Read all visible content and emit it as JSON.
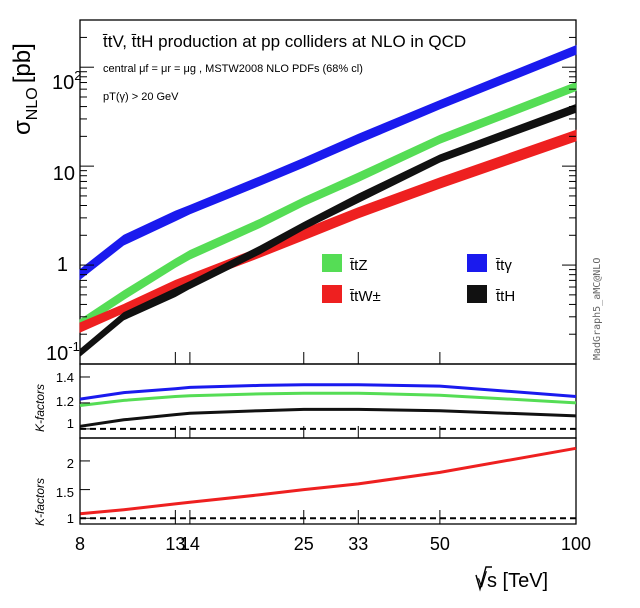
{
  "chart_data": {
    "type": "line",
    "x": [
      8,
      10,
      13,
      14,
      20,
      25,
      33,
      50,
      100
    ],
    "xlabel": "√s [TeV]",
    "xticks": [
      "8",
      "13",
      "14",
      "25",
      "33",
      "50",
      "100"
    ],
    "watermark": "MadGraph5_aMC@NLO",
    "panels": [
      {
        "name": "cross-section",
        "ylabel_main": "σ",
        "ylabel_sub": "NLO",
        "ylabel_unit": "[pb]",
        "yscale": "log",
        "ylim": [
          0.1,
          300
        ],
        "yticks": [
          {
            "value": 0.1,
            "base": "10",
            "exp": "-1"
          },
          {
            "value": 1,
            "base": "1",
            "exp": ""
          },
          {
            "value": 10,
            "base": "10",
            "exp": ""
          },
          {
            "value": 100,
            "base": "10",
            "exp": "2"
          }
        ],
        "title": "t̄tV, t̄tH production at pp colliders at NLO in QCD",
        "annotations": [
          "central μf = μr = μg , MSTW2008 NLO PDFs (68% cl)",
          "pT(γ) > 20 GeV"
        ],
        "series": [
          {
            "name": "t̄tγ",
            "color": "#1a1aee",
            "low": [
              0.72,
              1.6,
              2.8,
              3.3,
              6.4,
              9.8,
              17.0,
              38.0,
              135.0
            ],
            "high": [
              0.9,
              2.0,
              3.5,
              4.0,
              7.8,
              12.0,
              21.0,
              46.0,
              165.0
            ]
          },
          {
            "name": "t̄tZ",
            "color": "#55dd55",
            "low": [
              0.23,
              0.45,
              0.95,
              1.15,
              2.4,
              4.0,
              7.0,
              17.0,
              58.0
            ],
            "high": [
              0.28,
              0.55,
              1.15,
              1.4,
              2.9,
              4.8,
              8.5,
              20.5,
              70.0
            ]
          },
          {
            "name": "t̄tW±",
            "color": "#ee2020",
            "low": [
              0.21,
              0.33,
              0.55,
              0.65,
              1.2,
              1.8,
              3.0,
              6.0,
              18.0
            ],
            "high": [
              0.26,
              0.4,
              0.7,
              0.8,
              1.5,
              2.3,
              3.8,
              7.6,
              23.0
            ]
          },
          {
            "name": "t̄tH",
            "color": "#111111",
            "low": [
              0.12,
              0.28,
              0.48,
              0.58,
              1.3,
              2.3,
              4.3,
              11.0,
              35.0
            ],
            "high": [
              0.14,
              0.33,
              0.58,
              0.68,
              1.55,
              2.7,
              5.2,
              13.0,
              42.0
            ]
          }
        ]
      },
      {
        "name": "k-factors-1",
        "ylabel": "K-factors",
        "ylim": [
          0.93,
          1.5
        ],
        "yticks": [
          "1",
          "1.2",
          "1.4"
        ],
        "reference": 1,
        "series": [
          {
            "name": "t̄tγ",
            "color": "#1a1aee",
            "values": [
              1.23,
              1.28,
              1.31,
              1.32,
              1.335,
              1.34,
              1.34,
              1.33,
              1.25
            ]
          },
          {
            "name": "t̄tZ",
            "color": "#55dd55",
            "values": [
              1.18,
              1.22,
              1.25,
              1.255,
              1.27,
              1.275,
              1.275,
              1.26,
              1.2
            ]
          },
          {
            "name": "t̄tH",
            "color": "#111111",
            "values": [
              1.02,
              1.07,
              1.11,
              1.12,
              1.14,
              1.15,
              1.15,
              1.14,
              1.1
            ]
          }
        ]
      },
      {
        "name": "k-factors-2",
        "ylabel": "K-factors",
        "ylim": [
          0.9,
          2.4
        ],
        "yticks": [
          "1",
          "1.5",
          "2"
        ],
        "reference": 1,
        "series": [
          {
            "name": "t̄tW±",
            "color": "#ee2020",
            "values": [
              1.08,
              1.15,
              1.25,
              1.28,
              1.41,
              1.5,
              1.6,
              1.8,
              2.22
            ]
          }
        ]
      }
    ]
  }
}
